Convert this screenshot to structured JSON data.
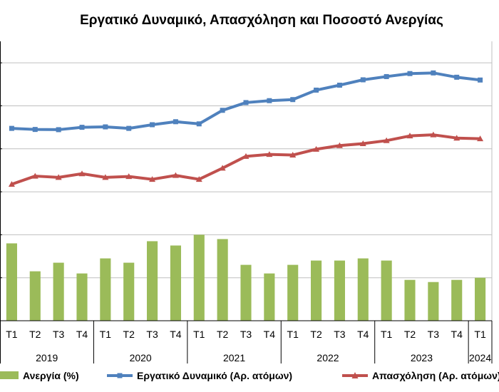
{
  "chart_data": {
    "type": "bar+line",
    "title": "Εργατικό Δυναμικό, Απασχόληση και Ποσοστό Ανεργίας",
    "quarters": [
      "Τ1",
      "Τ2",
      "Τ3",
      "Τ4",
      "Τ1",
      "Τ2",
      "Τ3",
      "Τ4",
      "Τ1",
      "Τ2",
      "Τ3",
      "Τ4",
      "Τ1",
      "Τ2",
      "Τ3",
      "Τ4",
      "Τ1",
      "Τ2",
      "Τ3",
      "Τ4",
      "Τ1"
    ],
    "years": [
      {
        "label": "2019",
        "count": 4
      },
      {
        "label": "2020",
        "count": 4
      },
      {
        "label": "2021",
        "count": 4
      },
      {
        "label": "2022",
        "count": 4
      },
      {
        "label": "2023",
        "count": 4
      },
      {
        "label": "2024",
        "count": 1
      }
    ],
    "series": [
      {
        "name": "Ανεργία (%)",
        "kind": "bar",
        "color": "#9BBB59",
        "values": [
          17.6,
          16.3,
          16.7,
          16.2,
          16.9,
          16.7,
          17.7,
          17.5,
          18.0,
          17.8,
          16.6,
          16.2,
          16.6,
          16.8,
          16.8,
          16.9,
          16.8,
          15.9,
          15.8,
          15.9,
          16.0
        ]
      },
      {
        "name": "Εργατικό Δυναμικό (Αρ. ατόμων)",
        "kind": "line",
        "marker": "square",
        "color": "#4F81BD",
        "values": [
          22.95,
          22.9,
          22.89,
          23.0,
          23.02,
          22.95,
          23.12,
          23.26,
          23.16,
          23.79,
          24.15,
          24.24,
          24.29,
          24.73,
          24.96,
          25.21,
          25.36,
          25.5,
          25.53,
          25.33,
          25.2
        ]
      },
      {
        "name": "Απασχόληση (Αρ. ατόμων)",
        "kind": "line",
        "marker": "triangle",
        "color": "#C0504D",
        "values": [
          20.35,
          20.73,
          20.67,
          20.84,
          20.67,
          20.71,
          20.58,
          20.76,
          20.58,
          21.1,
          21.65,
          21.74,
          21.71,
          21.98,
          22.15,
          22.24,
          22.38,
          22.6,
          22.65,
          22.5,
          22.47
        ]
      }
    ],
    "ylim": [
      14,
      27
    ],
    "grid": true,
    "legend_position": "bottom"
  }
}
